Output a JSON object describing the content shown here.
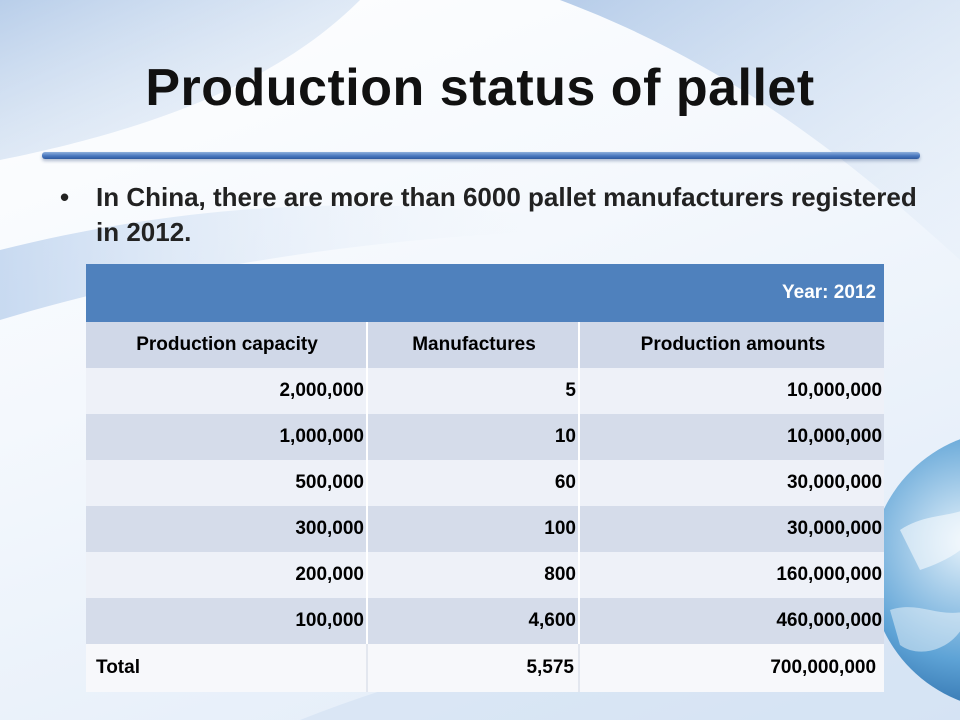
{
  "slide": {
    "title": "Production status of pallet",
    "bullet": "In China, there are more than 6000 pallet manufacturers registered in 2012.",
    "bullet_symbol": "•",
    "colors": {
      "header": "#4f81bd",
      "subheader": "#d0d8e8",
      "row_light": "#eef1f8",
      "row_dark": "#d5dcea"
    }
  },
  "table": {
    "year_label": "Year: 2012",
    "columns": [
      "Production capacity",
      "Manufactures",
      "Production amounts"
    ],
    "rows": [
      [
        "2,000,000",
        "5",
        "10,000,000"
      ],
      [
        "1,000,000",
        "10",
        "10,000,000"
      ],
      [
        "500,000",
        "60",
        "30,000,000"
      ],
      [
        "300,000",
        "100",
        "30,000,000"
      ],
      [
        "200,000",
        "800",
        "160,000,000"
      ],
      [
        "100,000",
        "4,600",
        "460,000,000"
      ]
    ],
    "total": [
      "Total",
      "5,575",
      "700,000,000"
    ]
  }
}
